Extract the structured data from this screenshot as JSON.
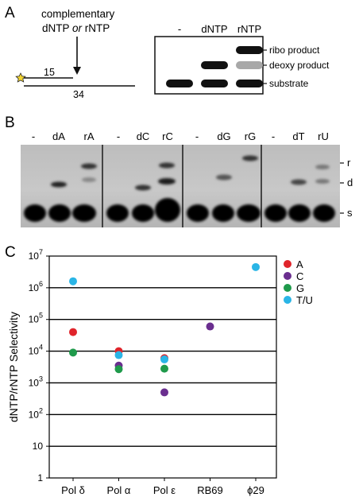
{
  "panel_a": {
    "label": "A",
    "annotation_line1": "complementary",
    "annotation_line2_a": "dNTP ",
    "annotation_line2_b": "or",
    "annotation_line2_c": " rNTP",
    "primer_length": "15",
    "template_length": "34",
    "legend": {
      "columns": [
        "-",
        "dNTP",
        "rNTP"
      ],
      "rows": [
        "ribo product",
        "deoxy product",
        "substrate"
      ],
      "colors": {
        "band": "#111111",
        "ghost_band": "#a8a8a8"
      }
    }
  },
  "panel_b": {
    "label": "B",
    "groups": [
      {
        "lanes": [
          "-",
          "dA",
          "rA"
        ]
      },
      {
        "lanes": [
          "-",
          "dC",
          "rC"
        ]
      },
      {
        "lanes": [
          "-",
          "dG",
          "rG"
        ]
      },
      {
        "lanes": [
          "-",
          "dT",
          "rU"
        ]
      }
    ],
    "row_labels": [
      "r",
      "d",
      "s"
    ]
  },
  "panel_c": {
    "label": "C",
    "chart_data": {
      "type": "scatter",
      "ylabel": "dNTP/rNTP Selectivity",
      "yscale": "log",
      "ylim": [
        1,
        10000000
      ],
      "yticks": [
        {
          "value": 1,
          "base": "1",
          "exp": ""
        },
        {
          "value": 10,
          "base": "10",
          "exp": ""
        },
        {
          "value": 100,
          "base": "10",
          "exp": "2"
        },
        {
          "value": 1000,
          "base": "10",
          "exp": "3"
        },
        {
          "value": 10000,
          "base": "10",
          "exp": "4"
        },
        {
          "value": 100000,
          "base": "10",
          "exp": "5"
        },
        {
          "value": 1000000,
          "base": "10",
          "exp": "6"
        },
        {
          "value": 10000000,
          "base": "10",
          "exp": "7"
        }
      ],
      "grid": "horizontal",
      "legend_position": "right",
      "categories": [
        "Pol δ",
        "Pol α",
        "Pol ε",
        "RB69",
        "ϕ29"
      ],
      "series": [
        {
          "name": "A",
          "color": "#e0242b",
          "values": [
            40000,
            10000,
            6000,
            null,
            null
          ]
        },
        {
          "name": "C",
          "color": "#6a2e8f",
          "values": [
            null,
            3500,
            500,
            60000,
            null
          ]
        },
        {
          "name": "G",
          "color": "#1f9a4b",
          "values": [
            9000,
            2700,
            2800,
            null,
            null
          ]
        },
        {
          "name": "T/U",
          "color": "#2ab5e6",
          "values": [
            1600000,
            7500,
            5500,
            null,
            4500000
          ]
        }
      ]
    }
  }
}
